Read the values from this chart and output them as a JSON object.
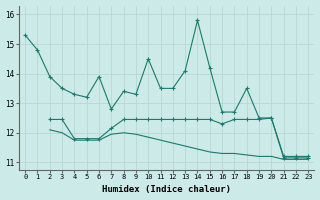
{
  "xlabel": "Humidex (Indice chaleur)",
  "background_color": "#cceae7",
  "grid_color": "#b8d8d5",
  "line_color": "#1a7a6e",
  "xlim": [
    -0.5,
    23.5
  ],
  "ylim": [
    10.75,
    16.3
  ],
  "yticks": [
    11,
    12,
    13,
    14,
    15,
    16
  ],
  "xticks": [
    0,
    1,
    2,
    3,
    4,
    5,
    6,
    7,
    8,
    9,
    10,
    11,
    12,
    13,
    14,
    15,
    16,
    17,
    18,
    19,
    20,
    21,
    22,
    23
  ],
  "series1_x": [
    0,
    1,
    2,
    3,
    4,
    5,
    6,
    7,
    8,
    9,
    10,
    11,
    12,
    13,
    14,
    15,
    16,
    17,
    18,
    19,
    20,
    21,
    22,
    23
  ],
  "series1_y": [
    15.3,
    14.8,
    13.9,
    13.5,
    13.3,
    13.2,
    13.9,
    12.8,
    13.4,
    13.3,
    14.5,
    13.5,
    13.5,
    14.1,
    15.8,
    14.2,
    12.7,
    12.7,
    13.5,
    12.5,
    12.5,
    11.2,
    11.2,
    11.2
  ],
  "series2_x": [
    2,
    3,
    4,
    5,
    6,
    7,
    8,
    9,
    10,
    11,
    12,
    13,
    14,
    15,
    16,
    17,
    18,
    19,
    20,
    21,
    22,
    23
  ],
  "series2_y": [
    12.45,
    12.45,
    11.8,
    11.8,
    11.8,
    12.15,
    12.45,
    12.45,
    12.45,
    12.45,
    12.45,
    12.45,
    12.45,
    12.45,
    12.3,
    12.45,
    12.45,
    12.45,
    12.5,
    11.15,
    11.15,
    11.15
  ],
  "series3_x": [
    2,
    3,
    4,
    5,
    6,
    7,
    8,
    9,
    10,
    11,
    12,
    13,
    14,
    15,
    16,
    17,
    18,
    19,
    20,
    21,
    22,
    23
  ],
  "series3_y": [
    12.1,
    12.0,
    11.75,
    11.75,
    11.75,
    11.95,
    12.0,
    11.95,
    11.85,
    11.75,
    11.65,
    11.55,
    11.45,
    11.35,
    11.3,
    11.3,
    11.25,
    11.2,
    11.2,
    11.1,
    11.1,
    11.1
  ]
}
